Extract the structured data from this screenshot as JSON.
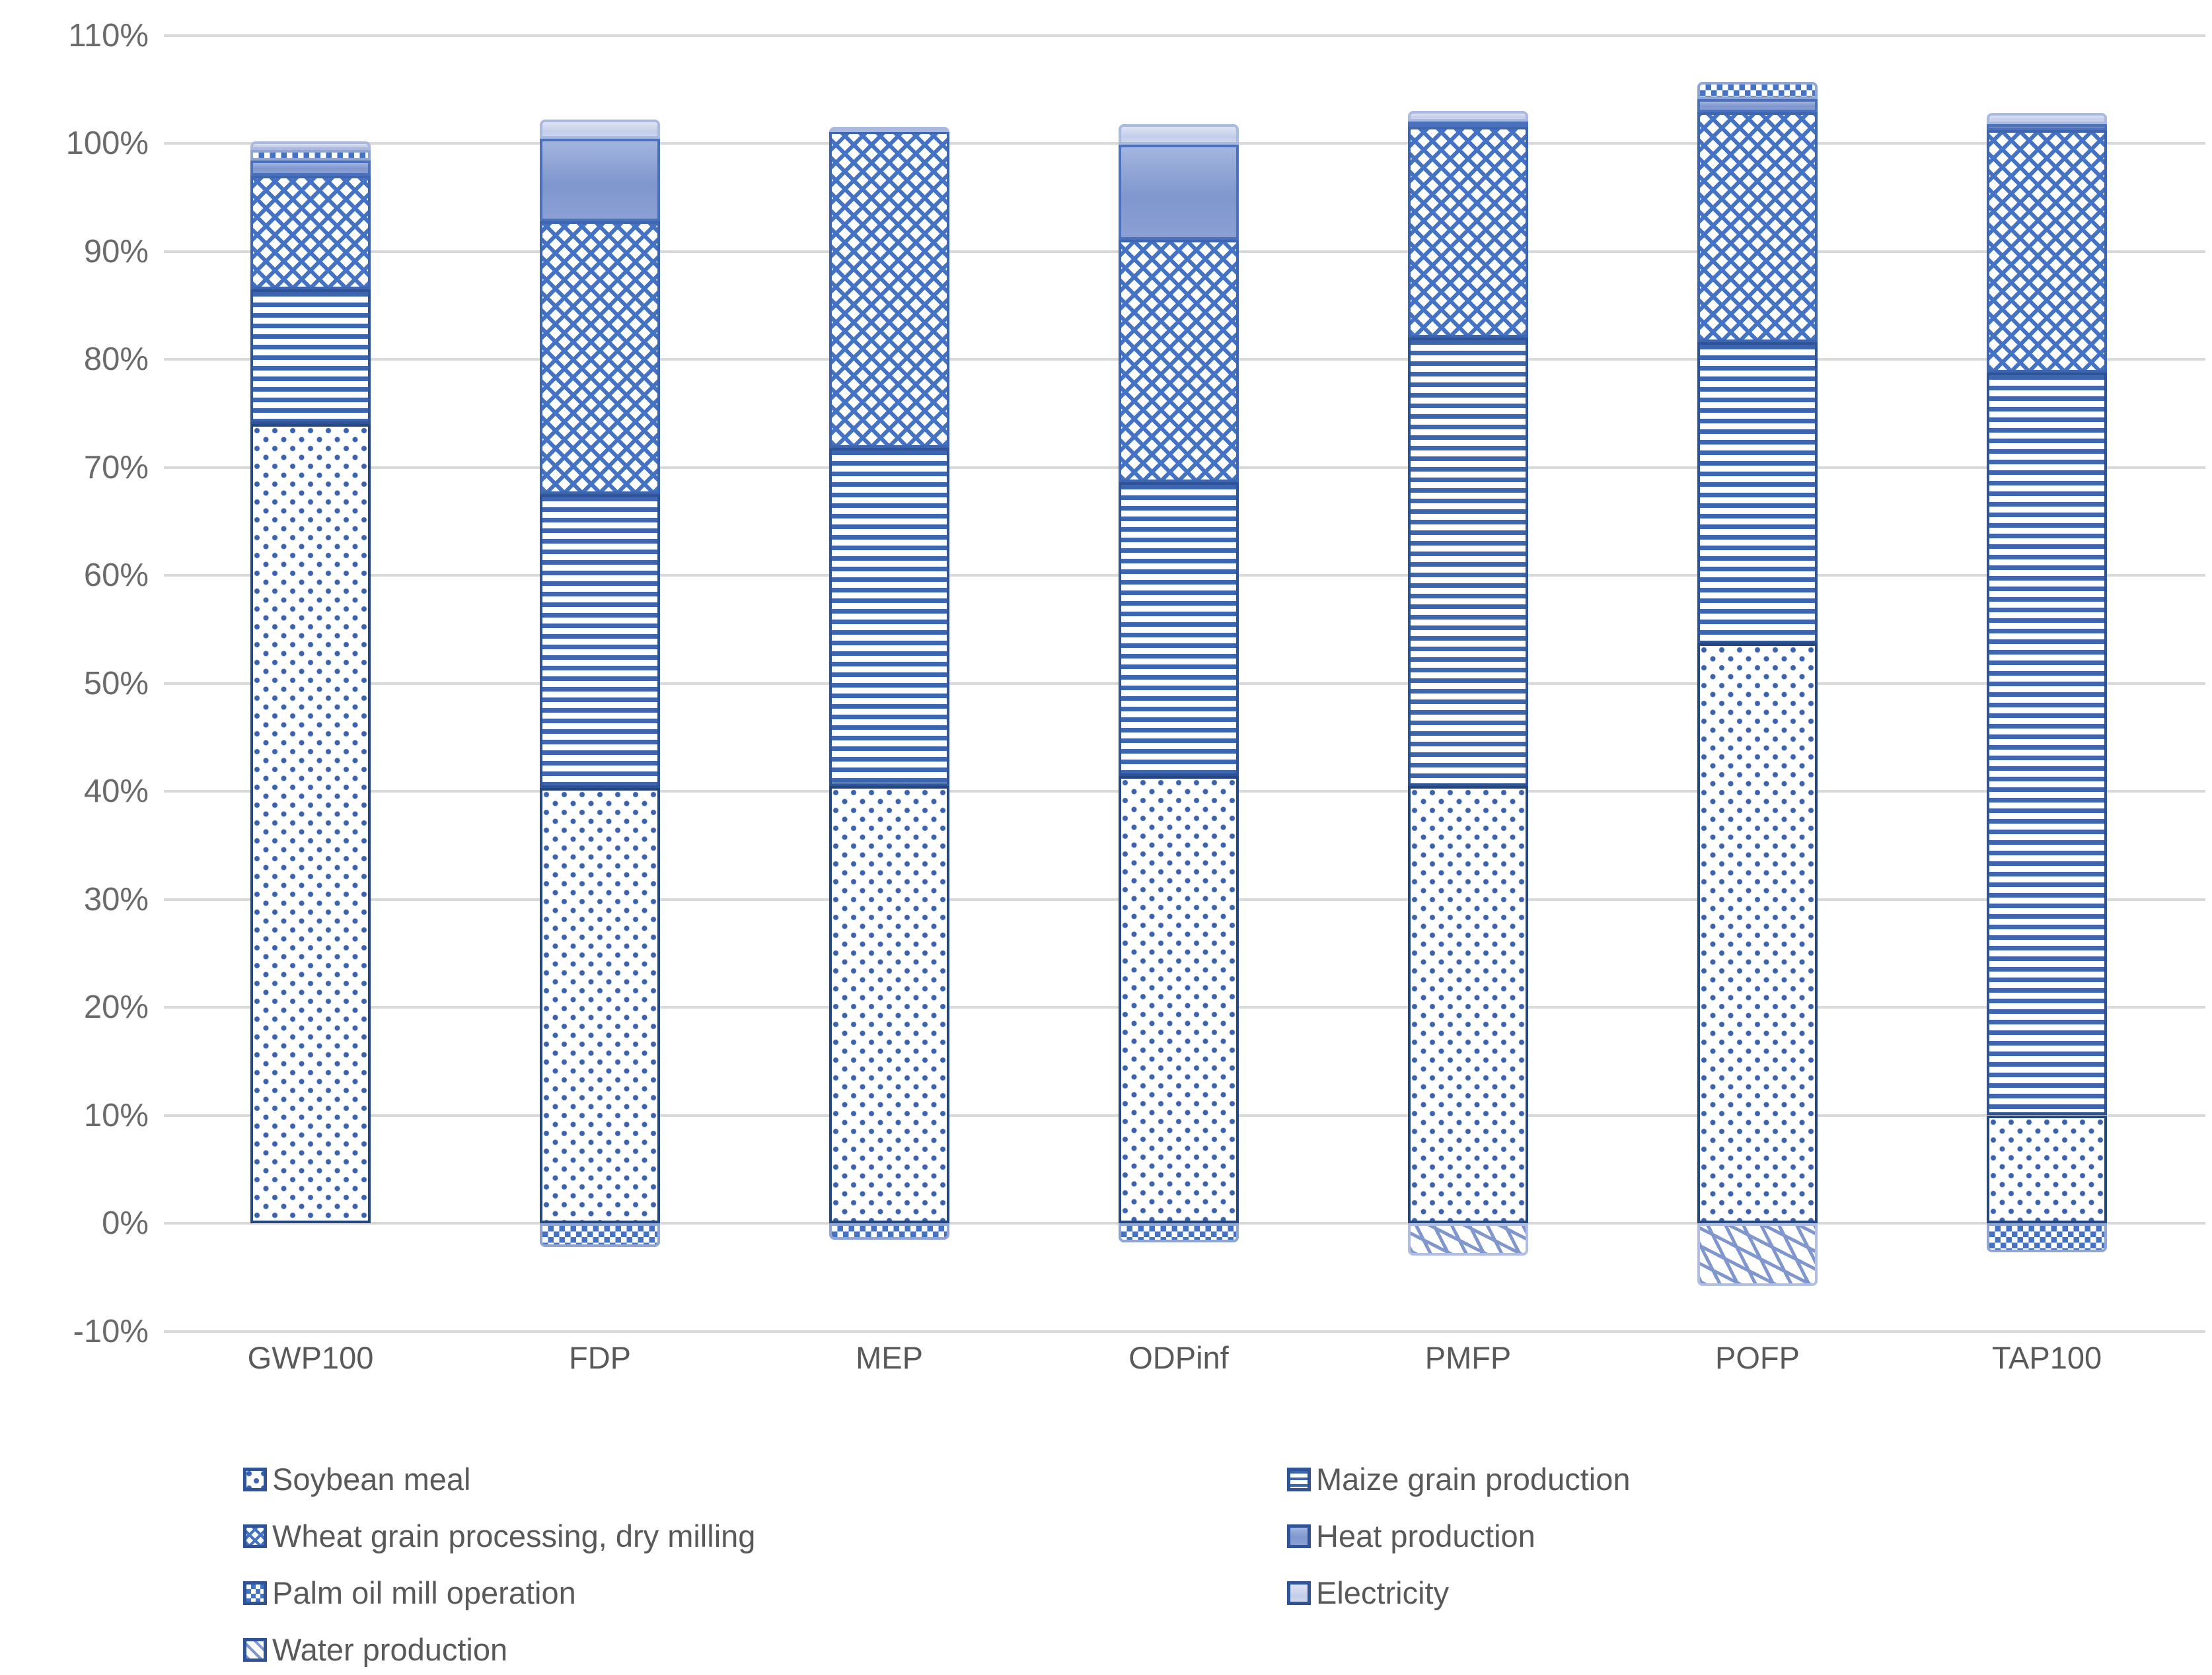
{
  "chart_data": {
    "type": "bar",
    "subtype": "stacked-percent",
    "title": "",
    "xlabel": "",
    "ylabel": "",
    "grid": true,
    "ylim": [
      -10,
      110
    ],
    "y_axis": {
      "ticks": [
        {
          "label": "110%",
          "value": 110
        },
        {
          "label": "100%",
          "value": 100
        },
        {
          "label": "90%",
          "value": 90
        },
        {
          "label": "80%",
          "value": 80
        },
        {
          "label": "70%",
          "value": 70
        },
        {
          "label": "60%",
          "value": 60
        },
        {
          "label": "50%",
          "value": 50
        },
        {
          "label": "40%",
          "value": 40
        },
        {
          "label": "30%",
          "value": 30
        },
        {
          "label": "20%",
          "value": 20
        },
        {
          "label": "10%",
          "value": 10
        },
        {
          "label": "0%",
          "value": 0
        },
        {
          "label": "-10%",
          "value": -10
        }
      ]
    },
    "categories": [
      "GWP100",
      "FDP",
      "MEP",
      "ODPinf",
      "PMFP",
      "POFP",
      "TAP100"
    ],
    "series": [
      {
        "name": "Soybean meal",
        "pattern": "dots",
        "values": [
          74.0,
          40.3,
          40.5,
          41.4,
          40.5,
          53.7,
          10.0
        ]
      },
      {
        "name": "Maize grain production",
        "pattern": "hlines",
        "values": [
          12.5,
          27.2,
          31.3,
          27.2,
          41.5,
          27.9,
          68.8
        ]
      },
      {
        "name": "Wheat grain processing, dry milling",
        "pattern": "cross",
        "values": [
          10.5,
          25.3,
          29.3,
          22.5,
          19.5,
          21.3,
          22.4
        ]
      },
      {
        "name": "Heat production",
        "pattern": "solidmed",
        "values": [
          1.4,
          7.6,
          0,
          8.8,
          0.5,
          1.2,
          0.6
        ]
      },
      {
        "name": "Palm oil mill operation",
        "pattern": "check",
        "values": [
          1.0,
          -2.2,
          -1.5,
          -1.8,
          0,
          1.6,
          -2.7
        ]
      },
      {
        "name": "Electricity",
        "pattern": "solidlight",
        "values": [
          0.8,
          1.8,
          0.4,
          1.9,
          1.0,
          0,
          1.0
        ]
      },
      {
        "name": "Water production",
        "pattern": "water",
        "values": [
          0,
          0,
          0,
          0,
          -3.0,
          -5.8,
          0
        ]
      }
    ],
    "legend": {
      "position": "bottom",
      "columns": [
        [
          "Soybean meal",
          "Wheat grain processing, dry milling",
          "Palm oil mill operation",
          "Water production"
        ],
        [
          "Maize grain production",
          "Heat production",
          "Electricity"
        ]
      ]
    },
    "colors": {
      "pattern_blue": "#4472c4",
      "dark_border": "#24477f",
      "heat_fill": "#8ba0d4",
      "electricity_fill": "#c3cde9",
      "light_border": "#a9b9df",
      "gridline": "#d9d9d9",
      "axis_text": "#595959"
    }
  }
}
